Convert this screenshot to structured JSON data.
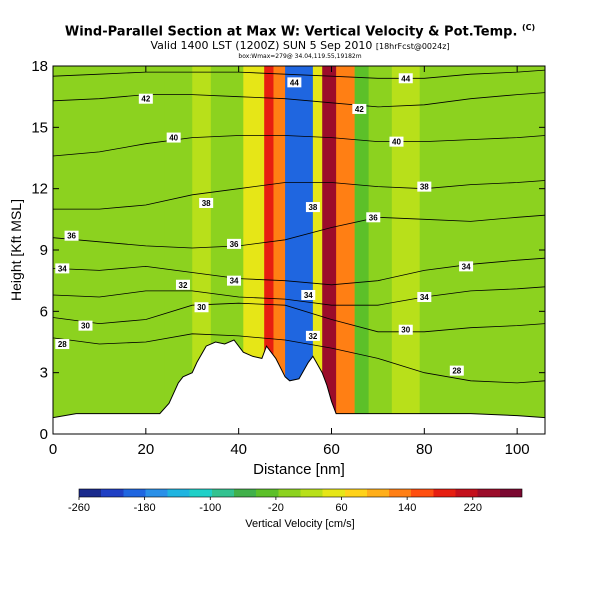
{
  "title": {
    "line1": "Wind-Parallel Section at Max W: Vertical Velocity & Pot.Temp.",
    "copyright": "(C)",
    "line2": "Valid 1400 LST (1200Z) SUN 5 Sep 2010",
    "line2_small": "[18hrFcst@0024z]",
    "line3": "box:Wmax=279@ 34.04,119.55,19182m"
  },
  "chart_data": {
    "type": "heatmap",
    "xlabel": "Distance [nm]",
    "ylabel": "Height [Kft MSL]",
    "xlim": [
      0,
      106
    ],
    "ylim": [
      0,
      18
    ],
    "xticks": [
      0,
      20,
      40,
      60,
      80,
      100
    ],
    "yticks": [
      0,
      3,
      6,
      9,
      12,
      15,
      18
    ],
    "terrain_kft": [
      [
        0,
        0.8
      ],
      [
        5,
        1.0
      ],
      [
        10,
        1.0
      ],
      [
        18,
        1.0
      ],
      [
        23,
        1.0
      ],
      [
        25,
        1.5
      ],
      [
        26,
        2.0
      ],
      [
        27,
        2.5
      ],
      [
        28,
        2.8
      ],
      [
        30,
        3.0
      ],
      [
        31,
        3.5
      ],
      [
        33,
        4.3
      ],
      [
        35,
        4.5
      ],
      [
        37,
        4.4
      ],
      [
        39,
        4.6
      ],
      [
        41,
        4.0
      ],
      [
        43,
        3.8
      ],
      [
        45,
        3.7
      ],
      [
        46,
        4.3
      ],
      [
        48,
        3.7
      ],
      [
        50,
        2.8
      ],
      [
        51,
        2.6
      ],
      [
        53,
        2.7
      ],
      [
        55,
        3.5
      ],
      [
        56,
        3.8
      ],
      [
        58,
        3.0
      ],
      [
        59,
        2.4
      ],
      [
        60,
        1.6
      ],
      [
        61,
        1.0
      ],
      [
        70,
        1.0
      ],
      [
        80,
        1.0
      ],
      [
        90,
        1.0
      ],
      [
        100,
        0.9
      ],
      [
        106,
        0.8
      ]
    ],
    "theta_contours": [
      {
        "label": "28",
        "points": [
          [
            0,
            4.7
          ],
          [
            10,
            4.4
          ],
          [
            20,
            4.5
          ],
          [
            30,
            4.9
          ],
          [
            40,
            4.8
          ],
          [
            50,
            4.6
          ],
          [
            60,
            4.2
          ],
          [
            70,
            3.7
          ],
          [
            80,
            3.0
          ],
          [
            90,
            2.6
          ],
          [
            100,
            2.5
          ],
          [
            106,
            2.6
          ]
        ],
        "labels_at": [
          [
            2,
            4.4
          ],
          [
            87,
            3.1
          ]
        ]
      },
      {
        "label": "30",
        "points": [
          [
            0,
            5.7
          ],
          [
            10,
            5.4
          ],
          [
            20,
            5.6
          ],
          [
            30,
            6.3
          ],
          [
            40,
            6.4
          ],
          [
            50,
            6.3
          ],
          [
            60,
            5.6
          ],
          [
            70,
            5.0
          ],
          [
            80,
            5.0
          ],
          [
            90,
            5.2
          ],
          [
            100,
            5.3
          ],
          [
            106,
            5.4
          ]
        ],
        "labels_at": [
          [
            7,
            5.3
          ],
          [
            32,
            6.2
          ],
          [
            76,
            5.1
          ]
        ]
      },
      {
        "label": "32",
        "points": [
          [
            0,
            6.8
          ],
          [
            10,
            6.7
          ],
          [
            20,
            7.0
          ],
          [
            30,
            7.0
          ],
          [
            40,
            6.7
          ],
          [
            50,
            6.6
          ],
          [
            60,
            6.3
          ],
          [
            70,
            6.3
          ],
          [
            80,
            6.7
          ],
          [
            90,
            7.0
          ],
          [
            100,
            7.1
          ],
          [
            106,
            7.2
          ]
        ],
        "labels_at": [
          [
            28,
            7.3
          ],
          [
            56,
            4.8
          ]
        ]
      },
      {
        "label": "34",
        "points": [
          [
            0,
            8.1
          ],
          [
            10,
            8.0
          ],
          [
            20,
            8.2
          ],
          [
            30,
            7.9
          ],
          [
            40,
            7.6
          ],
          [
            50,
            7.5
          ],
          [
            60,
            7.3
          ],
          [
            70,
            7.5
          ],
          [
            80,
            8.0
          ],
          [
            90,
            8.3
          ],
          [
            100,
            8.5
          ],
          [
            106,
            8.6
          ]
        ],
        "labels_at": [
          [
            2,
            8.1
          ],
          [
            39,
            7.5
          ],
          [
            55,
            6.8
          ],
          [
            80,
            6.7
          ],
          [
            89,
            8.2
          ]
        ]
      },
      {
        "label": "36",
        "points": [
          [
            0,
            9.6
          ],
          [
            10,
            9.4
          ],
          [
            20,
            9.2
          ],
          [
            30,
            9.1
          ],
          [
            40,
            9.2
          ],
          [
            50,
            9.5
          ],
          [
            60,
            10.1
          ],
          [
            70,
            10.6
          ],
          [
            80,
            10.5
          ],
          [
            90,
            10.4
          ],
          [
            100,
            10.6
          ],
          [
            106,
            10.7
          ]
        ],
        "labels_at": [
          [
            4,
            9.7
          ],
          [
            39,
            9.3
          ],
          [
            69,
            10.6
          ]
        ]
      },
      {
        "label": "38",
        "points": [
          [
            0,
            11.0
          ],
          [
            10,
            11.0
          ],
          [
            20,
            11.2
          ],
          [
            30,
            11.7
          ],
          [
            40,
            12.0
          ],
          [
            50,
            12.3
          ],
          [
            60,
            12.3
          ],
          [
            70,
            12.1
          ],
          [
            80,
            12.0
          ],
          [
            90,
            12.2
          ],
          [
            100,
            12.3
          ],
          [
            106,
            12.4
          ]
        ],
        "labels_at": [
          [
            33,
            11.3
          ],
          [
            56,
            11.1
          ],
          [
            80,
            12.1
          ]
        ]
      },
      {
        "label": "40",
        "points": [
          [
            0,
            13.6
          ],
          [
            10,
            13.8
          ],
          [
            20,
            14.2
          ],
          [
            30,
            14.5
          ],
          [
            40,
            14.6
          ],
          [
            50,
            14.6
          ],
          [
            60,
            14.5
          ],
          [
            70,
            14.3
          ],
          [
            80,
            14.3
          ],
          [
            90,
            14.4
          ],
          [
            100,
            14.5
          ],
          [
            106,
            14.6
          ]
        ],
        "labels_at": [
          [
            26,
            14.5
          ],
          [
            74,
            14.3
          ]
        ]
      },
      {
        "label": "42",
        "points": [
          [
            0,
            16.3
          ],
          [
            10,
            16.4
          ],
          [
            20,
            16.6
          ],
          [
            30,
            16.6
          ],
          [
            40,
            16.5
          ],
          [
            50,
            16.4
          ],
          [
            60,
            16.2
          ],
          [
            70,
            16.0
          ],
          [
            80,
            16.1
          ],
          [
            90,
            16.4
          ],
          [
            100,
            16.6
          ],
          [
            106,
            16.7
          ]
        ],
        "labels_at": [
          [
            20,
            16.4
          ],
          [
            66,
            15.9
          ]
        ]
      },
      {
        "label": "44",
        "points": [
          [
            0,
            17.5
          ],
          [
            10,
            17.6
          ],
          [
            20,
            17.7
          ],
          [
            30,
            17.7
          ],
          [
            40,
            17.7
          ],
          [
            50,
            17.6
          ],
          [
            60,
            17.5
          ],
          [
            70,
            17.4
          ],
          [
            80,
            17.4
          ],
          [
            90,
            17.6
          ],
          [
            100,
            17.7
          ],
          [
            106,
            17.8
          ]
        ],
        "labels_at": [
          [
            52,
            17.2
          ],
          [
            76,
            17.4
          ]
        ]
      }
    ],
    "vertical_velocity_bands": [
      {
        "x_center": 27,
        "half_width": 3,
        "w": 0
      },
      {
        "x_center": 32,
        "half_width": 2,
        "w": 15
      },
      {
        "x_center": 44,
        "half_width": 3,
        "w": 60
      },
      {
        "x_center": 47,
        "half_width": 1.5,
        "w": 180
      },
      {
        "x_center": 49,
        "half_width": 1.5,
        "w": 120
      },
      {
        "x_center": 53,
        "half_width": 3,
        "w": -200
      },
      {
        "x_center": 57.5,
        "half_width": 1.5,
        "w": 60
      },
      {
        "x_center": 60,
        "half_width": 2,
        "w": 240
      },
      {
        "x_center": 63,
        "half_width": 2,
        "w": 120
      },
      {
        "x_center": 66.5,
        "half_width": 1.5,
        "w": -20
      },
      {
        "x_center": 76,
        "half_width": 3,
        "w": 20
      }
    ],
    "colorbar": {
      "label": "Vertical Velocity [cm/s]",
      "min": -260,
      "max": 280,
      "tick_labels": [
        "-260",
        "-180",
        "-100",
        "-20",
        "60",
        "140",
        "220"
      ],
      "tick_values": [
        -260,
        -180,
        -100,
        -20,
        60,
        140,
        220
      ],
      "colors": [
        "#1a2a8c",
        "#1f3fc4",
        "#1f66e0",
        "#2a90e8",
        "#1fb4e0",
        "#1fd0c8",
        "#33c290",
        "#41b04a",
        "#5cc029",
        "#8cd21f",
        "#b8e01a",
        "#e6e617",
        "#ffd21a",
        "#ffae1a",
        "#ff7f14",
        "#ff4f10",
        "#e61e10",
        "#c4101c",
        "#9b0c2a",
        "#7a0830"
      ]
    }
  }
}
